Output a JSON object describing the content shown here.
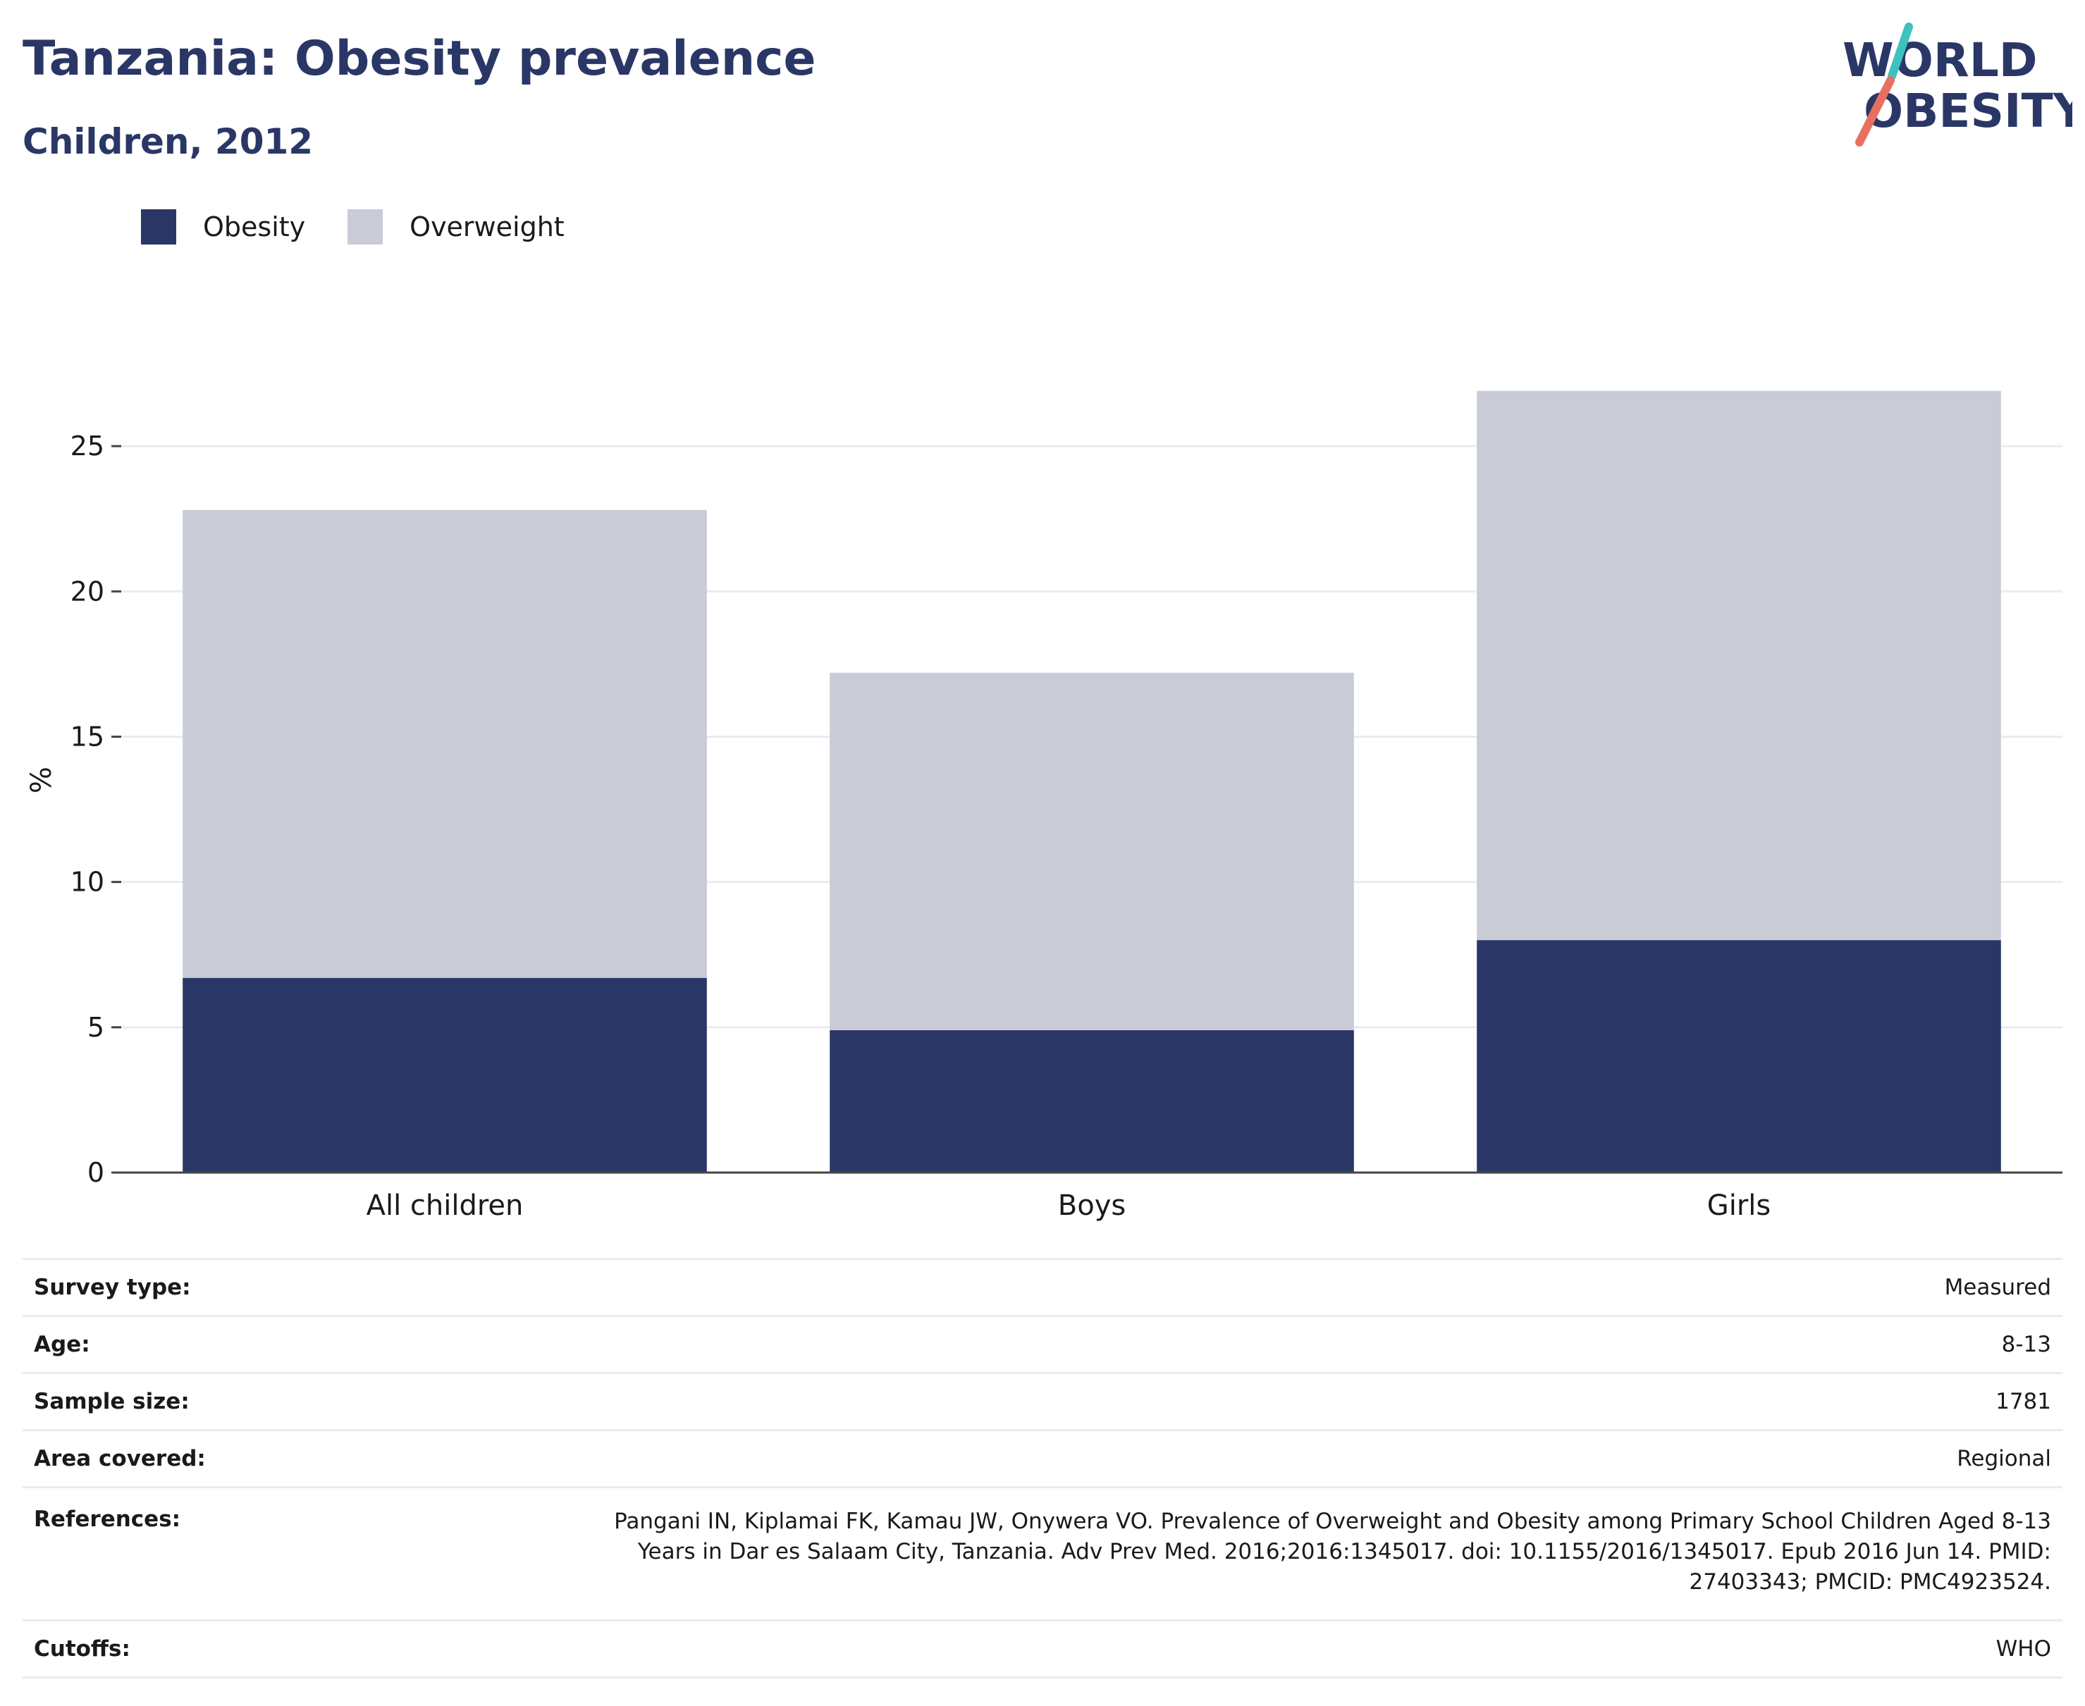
{
  "header": {
    "title": "Tanzania: Obesity prevalence",
    "subtitle": "Children, 2012"
  },
  "logo": {
    "line1": "WORLD",
    "line2": "OBESITY",
    "accent_teal": "#3fc1c0",
    "accent_coral": "#e8705f"
  },
  "chart_data": {
    "type": "bar",
    "stacked": true,
    "title": "Tanzania: Obesity prevalence",
    "subtitle": "Children, 2012",
    "categories": [
      "All children",
      "Boys",
      "Girls"
    ],
    "series": [
      {
        "name": "Obesity",
        "values": [
          6.7,
          4.9,
          8.0
        ],
        "color": "#2a3766"
      },
      {
        "name": "Overweight",
        "values": [
          16.1,
          12.3,
          18.9
        ],
        "color": "#c9cbd7"
      }
    ],
    "xlabel": "",
    "ylabel": "%",
    "ylim": [
      0,
      27.5
    ],
    "yticks": [
      0,
      5,
      10,
      15,
      20,
      25
    ],
    "grid": true,
    "legend": "top-left"
  },
  "info_table": [
    {
      "label": "Survey type:",
      "value": "Measured"
    },
    {
      "label": "Age:",
      "value": "8-13"
    },
    {
      "label": "Sample size:",
      "value": "1781"
    },
    {
      "label": "Area covered:",
      "value": "Regional"
    },
    {
      "label": "References:",
      "value_lines": [
        "Pangani IN, Kiplamai FK, Kamau JW, Onywera VO. Prevalence of Overweight and Obesity among Primary School Children Aged 8-13",
        "Years in Dar es Salaam City, Tanzania. Adv Prev Med. 2016;2016:1345017. doi: 10.1155/2016/1345017. Epub 2016 Jun 14. PMID:",
        "27403343; PMCID: PMC4923524."
      ]
    },
    {
      "label": "Cutoffs:",
      "value": "WHO"
    }
  ]
}
